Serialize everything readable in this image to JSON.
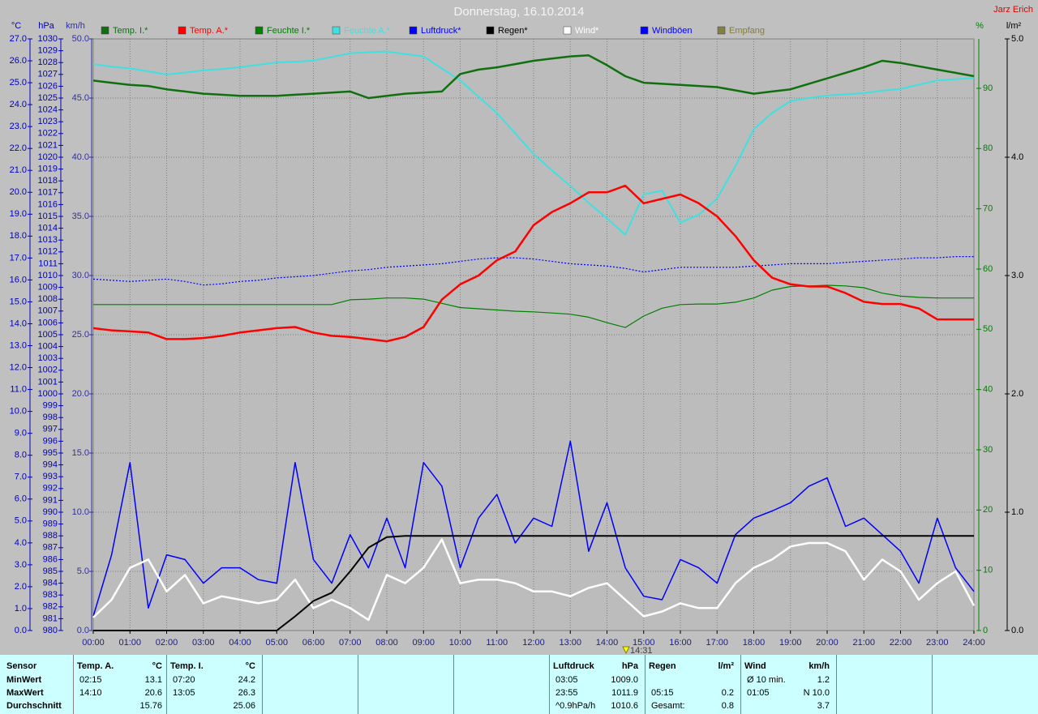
{
  "chart_data": {
    "type": "line",
    "title": "Donnerstag, 16.10.2014",
    "credit": "Jarz Erich",
    "x": [
      0,
      0.5,
      1,
      1.5,
      2,
      2.5,
      3,
      3.5,
      4,
      4.5,
      5,
      5.5,
      6,
      6.5,
      7,
      7.5,
      8,
      8.5,
      9,
      9.5,
      10,
      10.5,
      11,
      11.5,
      12,
      12.5,
      13,
      13.5,
      14,
      14.5,
      15,
      15.5,
      16,
      16.5,
      17,
      17.5,
      18,
      18.5,
      19,
      19.5,
      20,
      20.5,
      21,
      21.5,
      22,
      22.5,
      23,
      23.5,
      24
    ],
    "xlim": [
      0,
      24
    ],
    "xticks": [
      {
        "value": 0,
        "label": "00:00"
      },
      {
        "value": 1,
        "label": "01:00"
      },
      {
        "value": 2,
        "label": "02:00"
      },
      {
        "value": 3,
        "label": "03:00"
      },
      {
        "value": 4,
        "label": "04:00"
      },
      {
        "value": 5,
        "label": "05:00"
      },
      {
        "value": 6,
        "label": "06:00"
      },
      {
        "value": 7,
        "label": "07:00"
      },
      {
        "value": 8,
        "label": "08:00"
      },
      {
        "value": 9,
        "label": "09:00"
      },
      {
        "value": 10,
        "label": "10:00"
      },
      {
        "value": 11,
        "label": "11:00"
      },
      {
        "value": 12,
        "label": "12:00"
      },
      {
        "value": 13,
        "label": "13:00"
      },
      {
        "value": 14,
        "label": "14:00"
      },
      {
        "value": 15,
        "label": "15:00"
      },
      {
        "value": 16,
        "label": "16:00"
      },
      {
        "value": 17,
        "label": "17:00"
      },
      {
        "value": 18,
        "label": "18:00"
      },
      {
        "value": 19,
        "label": "19:00"
      },
      {
        "value": 20,
        "label": "20:00"
      },
      {
        "value": 21,
        "label": "21:00"
      },
      {
        "value": 22,
        "label": "22:00"
      },
      {
        "value": 23,
        "label": "23:00"
      },
      {
        "value": 24,
        "label": "24:00"
      }
    ],
    "xgrid": true,
    "axes": [
      {
        "unit": "°C",
        "color": "#0000c0",
        "lim": [
          0,
          27
        ],
        "grid": false,
        "ticks": [
          {
            "value": 0,
            "label": "0.0"
          },
          {
            "value": 1,
            "label": "1.0"
          },
          {
            "value": 2,
            "label": "2.0"
          },
          {
            "value": 3,
            "label": "3.0"
          },
          {
            "value": 4,
            "label": "4.0"
          },
          {
            "value": 5,
            "label": "5.0"
          },
          {
            "value": 6,
            "label": "6.0"
          },
          {
            "value": 7,
            "label": "7.0"
          },
          {
            "value": 8,
            "label": "8.0"
          },
          {
            "value": 9,
            "label": "9.0"
          },
          {
            "value": 10,
            "label": "10.0"
          },
          {
            "value": 11,
            "label": "11.0"
          },
          {
            "value": 12,
            "label": "12.0"
          },
          {
            "value": 13,
            "label": "13.0"
          },
          {
            "value": 14,
            "label": "14.0"
          },
          {
            "value": 15,
            "label": "15.0"
          },
          {
            "value": 16,
            "label": "16.0"
          },
          {
            "value": 17,
            "label": "17.0"
          },
          {
            "value": 18,
            "label": "18.0"
          },
          {
            "value": 19,
            "label": "19.0"
          },
          {
            "value": 20,
            "label": "20.0"
          },
          {
            "value": 21,
            "label": "21.0"
          },
          {
            "value": 22,
            "label": "22.0"
          },
          {
            "value": 23,
            "label": "23.0"
          },
          {
            "value": 24,
            "label": "24.0"
          },
          {
            "value": 25,
            "label": "25.0"
          },
          {
            "value": 26,
            "label": "26.0"
          },
          {
            "value": 27,
            "label": "27.0"
          }
        ]
      },
      {
        "unit": "hPa",
        "color": "#0000c0",
        "lim": [
          980,
          1030
        ],
        "grid": false,
        "ticks": [
          980,
          981,
          982,
          983,
          984,
          985,
          986,
          987,
          988,
          989,
          990,
          991,
          992,
          993,
          994,
          995,
          996,
          997,
          998,
          999,
          1000,
          1001,
          1002,
          1003,
          1004,
          1005,
          1006,
          1007,
          1008,
          1009,
          1010,
          1011,
          1012,
          1013,
          1014,
          1015,
          1016,
          1017,
          1018,
          1019,
          1020,
          1021,
          1022,
          1023,
          1024,
          1025,
          1026,
          1027,
          1028,
          1029,
          1030
        ]
      },
      {
        "unit": "km/h",
        "color": "#3030a0",
        "lim": [
          0,
          50
        ],
        "grid": true,
        "ticks": [
          {
            "value": 0,
            "label": "0.0"
          },
          {
            "value": 5,
            "label": "5.0"
          },
          {
            "value": 10,
            "label": "10.0"
          },
          {
            "value": 15,
            "label": "15.0"
          },
          {
            "value": 20,
            "label": "20.0"
          },
          {
            "value": 25,
            "label": "25.0"
          },
          {
            "value": 30,
            "label": "30.0"
          },
          {
            "value": 35,
            "label": "35.0"
          },
          {
            "value": 40,
            "label": "40.0"
          },
          {
            "value": 45,
            "label": "45.0"
          },
          {
            "value": 50,
            "label": "50.0"
          }
        ]
      },
      {
        "unit": "%",
        "color": "#008000",
        "lim": [
          0,
          98.2
        ],
        "grid": false,
        "ticks": [
          0,
          10,
          20,
          30,
          40,
          50,
          60,
          70,
          80,
          90
        ]
      },
      {
        "unit": "l/m²",
        "color": "#000000",
        "lim": [
          0,
          5
        ],
        "grid": false,
        "ticks": [
          {
            "value": 0,
            "label": "0.0"
          },
          {
            "value": 1,
            "label": "1.0"
          },
          {
            "value": 2,
            "label": "2.0"
          },
          {
            "value": 3,
            "label": "3.0"
          },
          {
            "value": 4,
            "label": "4.0"
          },
          {
            "value": 5,
            "label": "5.0"
          }
        ]
      }
    ],
    "series": [
      {
        "name": "Temp. I.*",
        "color": "#107010",
        "axis": "°C",
        "width": 2.5,
        "values": [
          25.1,
          25.0,
          24.9,
          24.85,
          24.7,
          24.6,
          24.5,
          24.45,
          24.4,
          24.4,
          24.4,
          24.45,
          24.5,
          24.55,
          24.6,
          24.3,
          24.4,
          24.5,
          24.55,
          24.6,
          25.4,
          25.6,
          25.7,
          25.85,
          26.0,
          26.1,
          26.2,
          26.25,
          25.8,
          25.3,
          25.0,
          24.95,
          24.9,
          24.85,
          24.8,
          24.65,
          24.5,
          24.6,
          24.7,
          24.95,
          25.2,
          25.45,
          25.7,
          26.0,
          25.9,
          25.75,
          25.6,
          25.45,
          25.3
        ]
      },
      {
        "name": "Temp. A.*",
        "color": "#ff0000",
        "axis": "°C",
        "width": 2.5,
        "values": [
          13.8,
          13.7,
          13.65,
          13.6,
          13.3,
          13.3,
          13.35,
          13.45,
          13.6,
          13.7,
          13.8,
          13.85,
          13.6,
          13.45,
          13.4,
          13.3,
          13.2,
          13.4,
          13.85,
          15.1,
          15.8,
          16.2,
          16.9,
          17.3,
          18.5,
          19.1,
          19.5,
          20.0,
          20.0,
          20.3,
          19.5,
          19.7,
          19.9,
          19.5,
          18.9,
          18.0,
          16.9,
          16.1,
          15.8,
          15.7,
          15.7,
          15.4,
          15.0,
          14.9,
          14.9,
          14.7,
          14.2,
          14.2,
          14.2
        ]
      },
      {
        "name": "Feuchte I.*",
        "color": "#008000",
        "axis": "%",
        "width": 1.2,
        "values": [
          54.1,
          54.1,
          54.1,
          54.1,
          54.1,
          54.1,
          54.1,
          54.1,
          54.1,
          54.1,
          54.1,
          54.1,
          54.1,
          54.1,
          54.9,
          55.0,
          55.2,
          55.2,
          55.0,
          54.3,
          53.6,
          53.4,
          53.2,
          53.0,
          52.9,
          52.7,
          52.5,
          52.0,
          51.1,
          50.3,
          52.2,
          53.5,
          54.1,
          54.2,
          54.2,
          54.5,
          55.2,
          56.5,
          57.1,
          57.2,
          57.3,
          57.2,
          56.9,
          56.0,
          55.5,
          55.3,
          55.2,
          55.2,
          55.2
        ]
      },
      {
        "name": "Feuchte A.*",
        "color": "#40e0e0",
        "axis": "%",
        "width": 2,
        "values": [
          94,
          93.6,
          93.3,
          92.8,
          92.3,
          92.6,
          93,
          93.2,
          93.5,
          93.9,
          94.3,
          94.4,
          94.6,
          95.2,
          95.8,
          96.0,
          96.1,
          95.7,
          95.3,
          93.3,
          91.3,
          88.6,
          85.9,
          82.5,
          79.1,
          76.4,
          73.8,
          71,
          68.4,
          65.7,
          72.4,
          73,
          67.7,
          69,
          71.7,
          77.1,
          83.2,
          85.9,
          87.9,
          88.4,
          88.8,
          89.0,
          89.2,
          89.6,
          89.9,
          90.6,
          91.3,
          91.5,
          91.7
        ]
      },
      {
        "name": "Luftdruck*",
        "color": "#0000ff",
        "axis": "hPa",
        "width": 1.2,
        "dash": true,
        "values": [
          1009.7,
          1009.6,
          1009.5,
          1009.6,
          1009.7,
          1009.5,
          1009.2,
          1009.3,
          1009.5,
          1009.6,
          1009.8,
          1009.9,
          1010.0,
          1010.2,
          1010.4,
          1010.5,
          1010.7,
          1010.8,
          1010.9,
          1011.0,
          1011.2,
          1011.4,
          1011.5,
          1011.5,
          1011.4,
          1011.2,
          1011.0,
          1010.9,
          1010.8,
          1010.6,
          1010.3,
          1010.5,
          1010.7,
          1010.7,
          1010.7,
          1010.7,
          1010.8,
          1010.9,
          1011.0,
          1011.0,
          1011.0,
          1011.1,
          1011.2,
          1011.3,
          1011.4,
          1011.5,
          1011.5,
          1011.6,
          1011.6
        ]
      },
      {
        "name": "Regen*",
        "color": "#000000",
        "axis": "l/m²",
        "width": 2,
        "values": [
          0,
          0,
          0,
          0,
          0,
          0,
          0,
          0,
          0,
          0,
          0,
          0.12,
          0.25,
          0.32,
          0.5,
          0.7,
          0.79,
          0.8,
          0.8,
          0.8,
          0.8,
          0.8,
          0.8,
          0.8,
          0.8,
          0.8,
          0.8,
          0.8,
          0.8,
          0.8,
          0.8,
          0.8,
          0.8,
          0.8,
          0.8,
          0.8,
          0.8,
          0.8,
          0.8,
          0.8,
          0.8,
          0.8,
          0.8,
          0.8,
          0.8,
          0.8,
          0.8,
          0.8,
          0.8
        ]
      },
      {
        "name": "Wind*",
        "color": "#ffffff",
        "axis": "km/h",
        "width": 2.5,
        "values": [
          1.1,
          2.6,
          5.3,
          6.0,
          3.3,
          4.7,
          2.3,
          2.9,
          2.6,
          2.3,
          2.6,
          4.3,
          1.9,
          2.6,
          1.9,
          0.9,
          4.7,
          4.0,
          5.3,
          7.7,
          4.0,
          4.3,
          4.3,
          4.0,
          3.3,
          3.3,
          2.9,
          3.6,
          4.0,
          2.6,
          1.2,
          1.6,
          2.3,
          1.9,
          1.9,
          4.0,
          5.3,
          6.0,
          7.1,
          7.4,
          7.4,
          6.7,
          4.3,
          6.0,
          5.0,
          2.6,
          4.0,
          5.0,
          2.1
        ]
      },
      {
        "name": "Windböen",
        "color": "#0000ff",
        "axis": "km/h",
        "width": 1.5,
        "values": [
          1.2,
          6.4,
          14.2,
          1.9,
          6.4,
          6.0,
          4.0,
          5.3,
          5.3,
          4.3,
          4.0,
          14.2,
          6.0,
          4.0,
          8.1,
          5.3,
          9.5,
          5.3,
          14.2,
          12.2,
          5.3,
          9.5,
          11.5,
          7.4,
          9.5,
          8.8,
          16.0,
          6.7,
          10.8,
          5.3,
          2.9,
          2.6,
          6.0,
          5.3,
          4.0,
          8.1,
          9.5,
          10.1,
          10.8,
          12.2,
          12.9,
          8.8,
          9.5,
          8.1,
          6.7,
          4.0,
          9.5,
          5.3,
          3.3
        ]
      }
    ],
    "legend_only": [
      {
        "name": "Empfang",
        "color": "#808040"
      }
    ],
    "annotation": {
      "x": 14.52,
      "label": "14:31"
    }
  },
  "stats": {
    "row_labels": [
      "Sensor",
      "MinWert",
      "MaxWert",
      "Durchschnitt"
    ],
    "groups": [
      {
        "title": "Temp. A.",
        "unit": "°C",
        "rows": [
          {
            "time": "02:15",
            "value": "13.1"
          },
          {
            "time": "14:10",
            "value": "20.6"
          },
          {
            "value": "15.76"
          }
        ]
      },
      {
        "title": "Temp. I.",
        "unit": "°C",
        "rows": [
          {
            "time": "07:20",
            "value": "24.2"
          },
          {
            "time": "13:05",
            "value": "26.3"
          },
          {
            "value": "25.06"
          }
        ]
      },
      {
        "title": "Luftdruck",
        "unit": "hPa",
        "rows": [
          {
            "time": "03:05",
            "value": "1009.0"
          },
          {
            "time": "23:55",
            "value": "1011.9"
          },
          {
            "time": "^0.9hPa/h",
            "value": "1010.6"
          }
        ]
      },
      {
        "title": "Regen",
        "unit": "l/m²",
        "rows": [
          null,
          {
            "time": "05:15",
            "value": "0.2"
          },
          {
            "time": "Gesamt:",
            "value": "0.8"
          }
        ]
      },
      {
        "title": "Wind",
        "unit": "km/h",
        "rows": [
          {
            "time": "Ø 10 min.",
            "value": "1.2"
          },
          {
            "time": "01:05",
            "value": "N 10.0"
          },
          {
            "value": "3.7"
          }
        ]
      }
    ]
  }
}
